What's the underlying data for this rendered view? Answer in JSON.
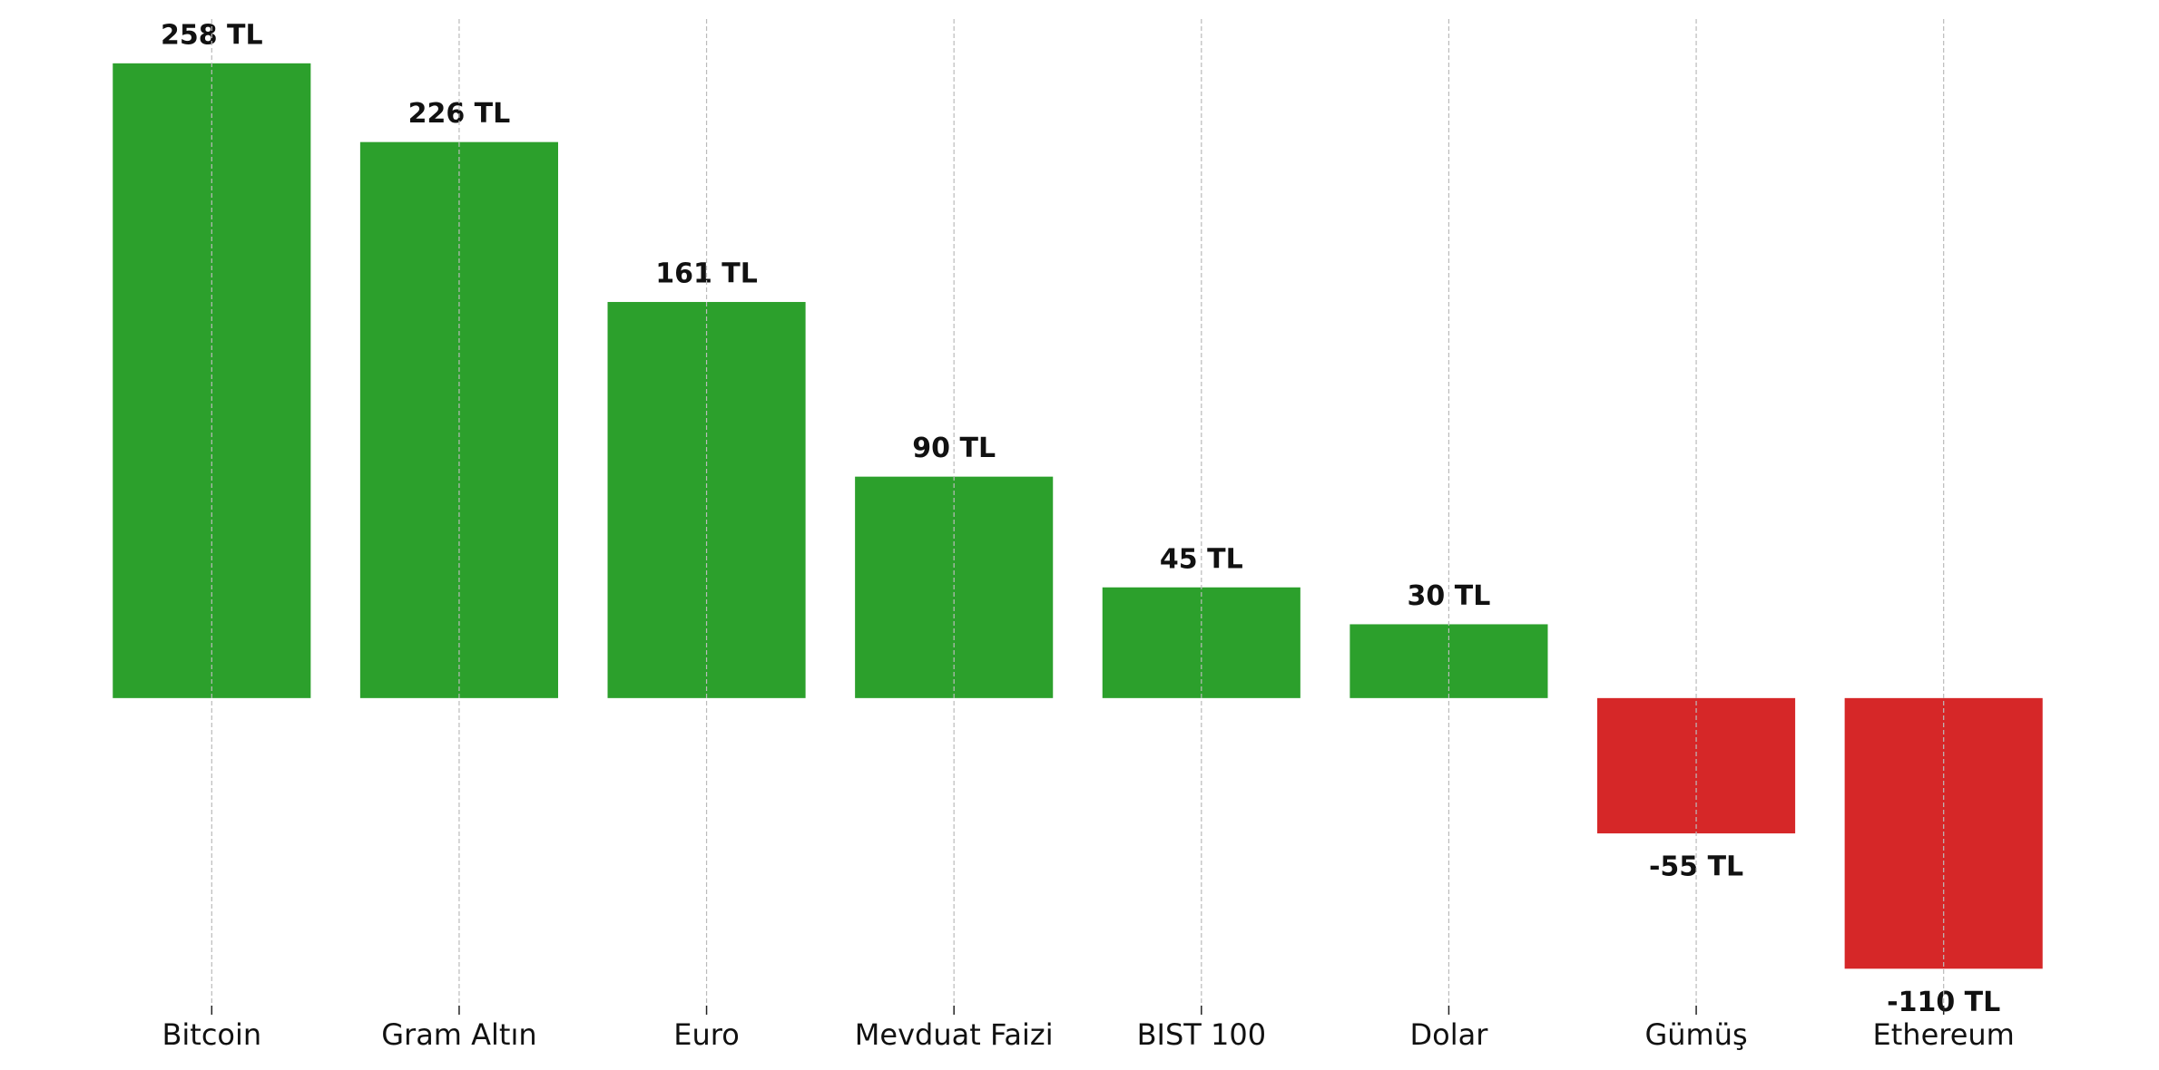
{
  "chart_data": {
    "type": "bar",
    "categories": [
      "Bitcoin",
      "Gram Altın",
      "Euro",
      "Mevduat Faizi",
      "BIST 100",
      "Dolar",
      "Gümüş",
      "Ethereum"
    ],
    "values": [
      258,
      226,
      161,
      90,
      45,
      30,
      -55,
      -110
    ],
    "value_labels": [
      "258 TL",
      "226 TL",
      "161 TL",
      "90 TL",
      "45 TL",
      "30 TL",
      "-55 TL",
      "-110 TL"
    ],
    "colors": [
      "#2ca02c",
      "#2ca02c",
      "#2ca02c",
      "#2ca02c",
      "#2ca02c",
      "#2ca02c",
      "#d62728",
      "#d62728"
    ],
    "ylim": [
      -125,
      276
    ],
    "xgrid": true
  }
}
